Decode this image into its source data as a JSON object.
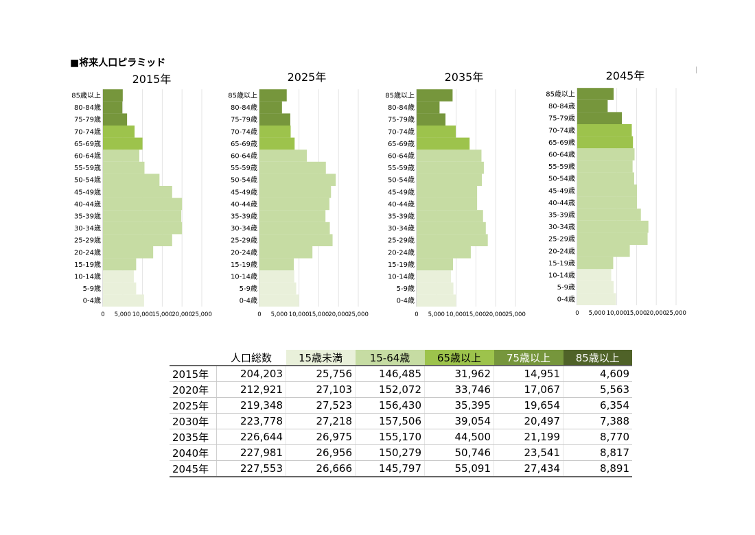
{
  "heading": "■将来人口ピラミッド",
  "chart_data": [
    {
      "type": "bar",
      "orientation": "horizontal",
      "title": "2015年",
      "categories": [
        "0-4歳",
        "5-9歳",
        "10-14歳",
        "15-19歳",
        "20-24歳",
        "25-29歳",
        "30-34歳",
        "35-39歳",
        "40-44歳",
        "45-49歳",
        "50-54歳",
        "55-59歳",
        "60-64歳",
        "65-69歳",
        "70-74歳",
        "75-79歳",
        "80-84歳",
        "85歳以上"
      ],
      "values": [
        10400,
        8400,
        7800,
        8400,
        12700,
        17500,
        20000,
        19800,
        20000,
        17500,
        14300,
        10500,
        9200,
        10000,
        8000,
        6100,
        4900,
        5000
      ],
      "xlim": [
        0,
        25000
      ],
      "xticks": [
        "0",
        "5,000",
        "10,000",
        "15,000",
        "20,000",
        "25,000"
      ],
      "colors": [
        "#e9f0da",
        "#e9f0da",
        "#e9f0da",
        "#c6dca3",
        "#c6dca3",
        "#c6dca3",
        "#c6dca3",
        "#c6dca3",
        "#c6dca3",
        "#c6dca3",
        "#c6dca3",
        "#c6dca3",
        "#c6dca3",
        "#9dc34c",
        "#9dc34c",
        "#76963c",
        "#76963c",
        "#76963c"
      ],
      "grid": true
    },
    {
      "type": "bar",
      "orientation": "horizontal",
      "title": "2025年",
      "categories": [
        "0-4歳",
        "5-9歳",
        "10-14歳",
        "15-19歳",
        "20-24歳",
        "25-29歳",
        "30-34歳",
        "35-39歳",
        "40-44歳",
        "45-49歳",
        "50-54歳",
        "55-59歳",
        "60-64歳",
        "65-69歳",
        "70-74歳",
        "75-79歳",
        "80-84歳",
        "85歳以上"
      ],
      "values": [
        10000,
        9300,
        8800,
        8700,
        13400,
        18500,
        17800,
        16700,
        17700,
        18100,
        19300,
        16800,
        12000,
        8900,
        7900,
        7800,
        5700,
        6900
      ],
      "xlim": [
        0,
        25000
      ],
      "xticks": [
        "0",
        "5,000",
        "10,000",
        "15,000",
        "20,000",
        "25,000"
      ],
      "colors": [
        "#e9f0da",
        "#e9f0da",
        "#e9f0da",
        "#c6dca3",
        "#c6dca3",
        "#c6dca3",
        "#c6dca3",
        "#c6dca3",
        "#c6dca3",
        "#c6dca3",
        "#c6dca3",
        "#c6dca3",
        "#c6dca3",
        "#9dc34c",
        "#9dc34c",
        "#76963c",
        "#76963c",
        "#76963c"
      ],
      "grid": true
    },
    {
      "type": "bar",
      "orientation": "horizontal",
      "title": "2035年",
      "categories": [
        "0-4歳",
        "5-9歳",
        "10-14歳",
        "15-19歳",
        "20-24歳",
        "25-29歳",
        "30-34歳",
        "35-39歳",
        "40-44歳",
        "45-49歳",
        "50-54歳",
        "55-59歳",
        "60-64歳",
        "65-69歳",
        "70-74歳",
        "75-79歳",
        "80-84歳",
        "85歳以上"
      ],
      "values": [
        10000,
        9300,
        8700,
        9200,
        13700,
        18000,
        17500,
        16800,
        15300,
        15300,
        16500,
        17000,
        16400,
        13400,
        9900,
        7300,
        5800,
        9100
      ],
      "xlim": [
        0,
        25000
      ],
      "xticks": [
        "0",
        "5,000",
        "10,000",
        "15,000",
        "20,000",
        "25,000"
      ],
      "colors": [
        "#e9f0da",
        "#e9f0da",
        "#e9f0da",
        "#c6dca3",
        "#c6dca3",
        "#c6dca3",
        "#c6dca3",
        "#c6dca3",
        "#c6dca3",
        "#c6dca3",
        "#c6dca3",
        "#c6dca3",
        "#c6dca3",
        "#9dc34c",
        "#9dc34c",
        "#76963c",
        "#76963c",
        "#76963c"
      ],
      "grid": true
    },
    {
      "type": "bar",
      "orientation": "horizontal",
      "title": "2045年",
      "categories": [
        "0-4歳",
        "5-9歳",
        "10-14歳",
        "15-19歳",
        "20-24歳",
        "25-29歳",
        "30-34歳",
        "35-39歳",
        "40-44歳",
        "45-49歳",
        "50-54歳",
        "55-59歳",
        "60-64歳",
        "65-69歳",
        "70-74歳",
        "75-79歳",
        "80-84歳",
        "85歳以上"
      ],
      "values": [
        9800,
        9200,
        8600,
        9100,
        13300,
        17800,
        18000,
        16100,
        15100,
        15100,
        14400,
        14000,
        14500,
        14100,
        13800,
        11300,
        7700,
        9200
      ],
      "xlim": [
        0,
        25000
      ],
      "xticks": [
        "0",
        "5,000",
        "10,000",
        "15,000",
        "20,000",
        "25,000"
      ],
      "colors": [
        "#e9f0da",
        "#e9f0da",
        "#e9f0da",
        "#c6dca3",
        "#c6dca3",
        "#c6dca3",
        "#c6dca3",
        "#c6dca3",
        "#c6dca3",
        "#c6dca3",
        "#c6dca3",
        "#c6dca3",
        "#c6dca3",
        "#9dc34c",
        "#9dc34c",
        "#76963c",
        "#76963c",
        "#76963c"
      ],
      "grid": true
    }
  ],
  "table": {
    "headers": [
      {
        "label": "",
        "bg": "#ffffff",
        "fg": "#000000"
      },
      {
        "label": "人口総数",
        "bg": "#ffffff",
        "fg": "#000000"
      },
      {
        "label": "15歳未満",
        "bg": "#e9f0da",
        "fg": "#000000"
      },
      {
        "label": "15-64歳",
        "bg": "#c6dca3",
        "fg": "#000000"
      },
      {
        "label": "65歳以上",
        "bg": "#9dc34c",
        "fg": "#000000"
      },
      {
        "label": "75歳以上",
        "bg": "#76963c",
        "fg": "#ffffff"
      },
      {
        "label": "85歳以上",
        "bg": "#4f6228",
        "fg": "#ffffff"
      }
    ],
    "rows": [
      [
        "2015年",
        "204,203",
        "25,756",
        "146,485",
        "31,962",
        "14,951",
        "4,609"
      ],
      [
        "2020年",
        "212,921",
        "27,103",
        "152,072",
        "33,746",
        "17,067",
        "5,563"
      ],
      [
        "2025年",
        "219,348",
        "27,523",
        "156,430",
        "35,395",
        "19,654",
        "6,354"
      ],
      [
        "2030年",
        "223,778",
        "27,218",
        "157,506",
        "39,054",
        "20,497",
        "7,388"
      ],
      [
        "2035年",
        "226,644",
        "26,975",
        "155,170",
        "44,500",
        "21,199",
        "8,770"
      ],
      [
        "2040年",
        "227,981",
        "26,956",
        "150,279",
        "50,746",
        "23,541",
        "8,817"
      ],
      [
        "2045年",
        "227,553",
        "26,666",
        "145,797",
        "55,091",
        "27,434",
        "8,891"
      ]
    ]
  }
}
